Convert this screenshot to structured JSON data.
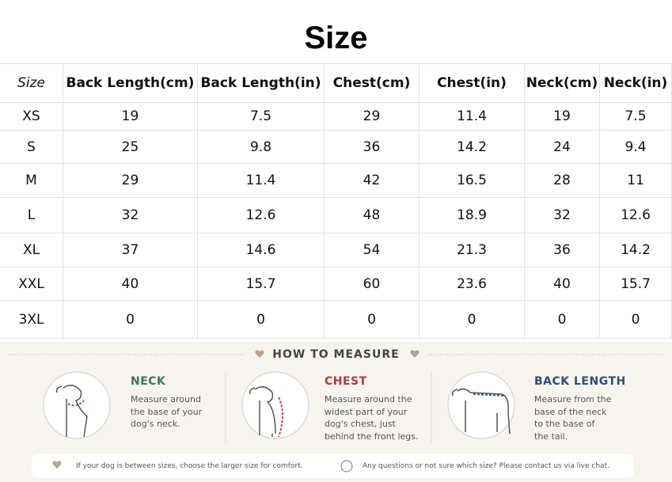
{
  "header": {
    "title": "Size"
  },
  "table": {
    "columns": [
      "Size",
      "Back Length(cm)",
      "Back Length(in)",
      "Chest(cm)",
      "Chest(in)",
      "Neck(cm)",
      "Neck(in)"
    ],
    "rows": [
      [
        "XS",
        "19",
        "7.5",
        "29",
        "11.4",
        "19",
        "7.5"
      ],
      [
        "S",
        "25",
        "9.8",
        "36",
        "14.2",
        "24",
        "9.4"
      ],
      [
        "M",
        "29",
        "11.4",
        "42",
        "16.5",
        "28",
        "11"
      ],
      [
        "L",
        "32",
        "12.6",
        "48",
        "18.9",
        "32",
        "12.6"
      ],
      [
        "XL",
        "37",
        "14.6",
        "54",
        "21.3",
        "36",
        "14.2"
      ],
      [
        "XXL",
        "40",
        "15.7",
        "60",
        "23.6",
        "40",
        "15.7"
      ],
      [
        "3XL",
        "0",
        "0",
        "0",
        "0",
        "0",
        "0"
      ]
    ]
  },
  "measure": {
    "title": "HOW TO MEASURE",
    "items": [
      {
        "title": "NECK",
        "lines": [
          "Measure around",
          "the base of your",
          "dog's neck."
        ]
      },
      {
        "title": "CHEST",
        "lines": [
          "Measure around the",
          "widest part of your",
          "dog's chest, just",
          "behind the front legs."
        ]
      },
      {
        "title": "BACK LENGTH",
        "lines": [
          "Measure from the",
          "base of the neck",
          "to the base of",
          "the tail."
        ]
      }
    ],
    "notes": [
      "If your dog is between sizes, choose the larger size for comfort.",
      "Any questions or not sure which size? Please contact us via live chat."
    ]
  }
}
